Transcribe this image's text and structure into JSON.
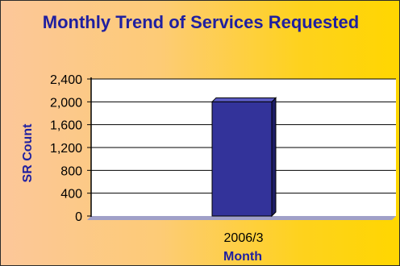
{
  "chart_data": {
    "type": "bar",
    "title": "Monthly Trend of Services Requested",
    "xlabel": "Month",
    "ylabel": "SR Count",
    "categories": [
      "2006/3"
    ],
    "values": [
      2000
    ],
    "ylim": [
      0,
      2400
    ],
    "yticks": [
      0,
      400,
      800,
      1200,
      1600,
      2000,
      2400
    ],
    "ytick_labels": [
      "0",
      "400",
      "800",
      "1,200",
      "1,600",
      "2,000",
      "2,400"
    ],
    "grid": true,
    "legend": "none",
    "colors": {
      "bar": "#33339a",
      "bar_top": "#5c5cc6",
      "bar_side": "#1d1d66",
      "title": "#1f1fa0",
      "plot_bg": "#ffffff",
      "floor": "#a0a0c8"
    }
  }
}
